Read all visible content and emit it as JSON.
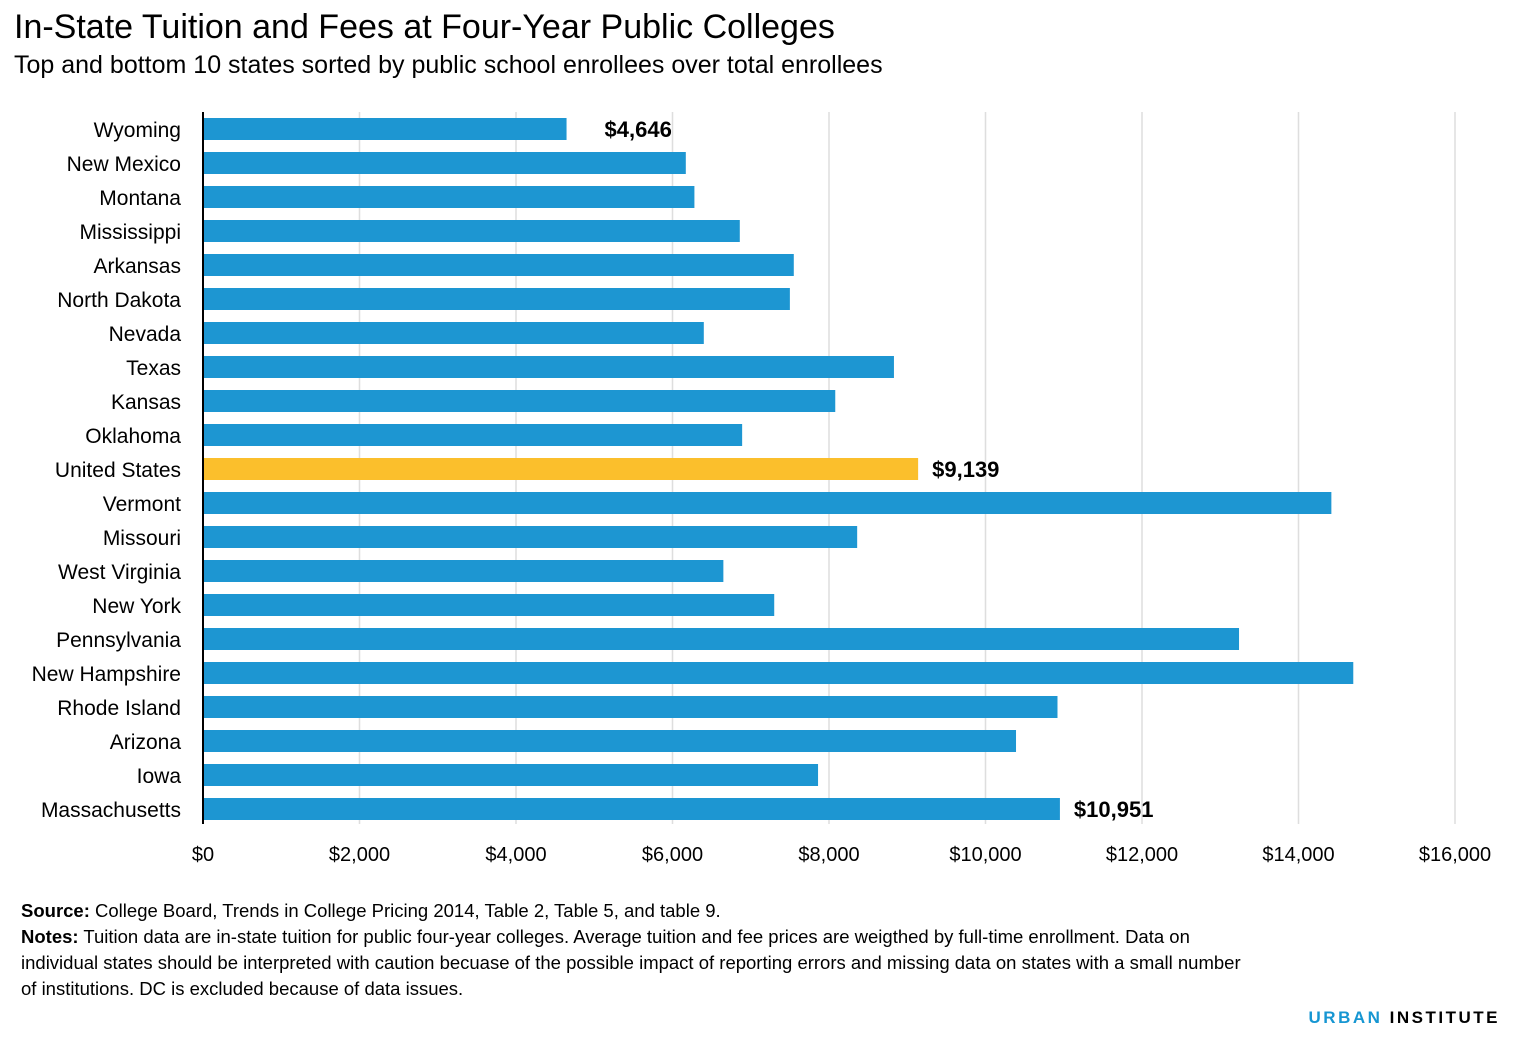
{
  "title": "In-State Tuition and Fees at Four-Year Public Colleges",
  "subtitle": "Top and bottom 10 states sorted by public school enrollees over total enrollees",
  "footer": {
    "source_label": "Source:",
    "source_text": "College Board, Trends in College Pricing 2014, Table 2, Table 5, and table 9.",
    "notes_label": "Notes:",
    "notes_text": "Tuition data are in-state tuition for public four-year colleges. Average tuition and fee prices are weigthed by full-time enrollment. Data on individual states should be interpreted with caution becuase of the possible impact of reporting errors and missing data on states with a small number of institutions. DC is excluded because of data issues."
  },
  "brand": {
    "part1": "URBAN",
    "part2": "INSTITUTE"
  },
  "colors": {
    "bar": "#1d96d2",
    "highlight": "#fbbf2c",
    "grid": "#dedede",
    "axis": "#000000"
  },
  "chart_data": {
    "type": "bar",
    "orientation": "horizontal",
    "categories": [
      "Wyoming",
      "New Mexico",
      "Montana",
      "Mississippi",
      "Arkansas",
      "North Dakota",
      "Nevada",
      "Texas",
      "Kansas",
      "Oklahoma",
      "United States",
      "Vermont",
      "Missouri",
      "West Virginia",
      "New York",
      "Pennsylvania",
      "New Hampshire",
      "Rhode Island",
      "Arizona",
      "Iowa",
      "Massachusetts"
    ],
    "values": [
      4646,
      6170,
      6280,
      6860,
      7550,
      7500,
      6400,
      8830,
      8080,
      6890,
      9139,
      14420,
      8360,
      6650,
      7300,
      13240,
      14700,
      10920,
      10390,
      7860,
      10951
    ],
    "highlight": "United States",
    "data_labels": [
      {
        "category": "Wyoming",
        "text": "$4,646"
      },
      {
        "category": "United States",
        "text": "$9,139"
      },
      {
        "category": "Massachusetts",
        "text": "$10,951"
      }
    ],
    "x_ticks": [
      0,
      2000,
      4000,
      6000,
      8000,
      10000,
      12000,
      14000,
      16000
    ],
    "x_tick_labels": [
      "$0",
      "$2,000",
      "$4,000",
      "$6,000",
      "$8,000",
      "$10,000",
      "$12,000",
      "$14,000",
      "$16,000"
    ],
    "xlim": [
      0,
      16000
    ],
    "grid": true,
    "legend": "none"
  }
}
